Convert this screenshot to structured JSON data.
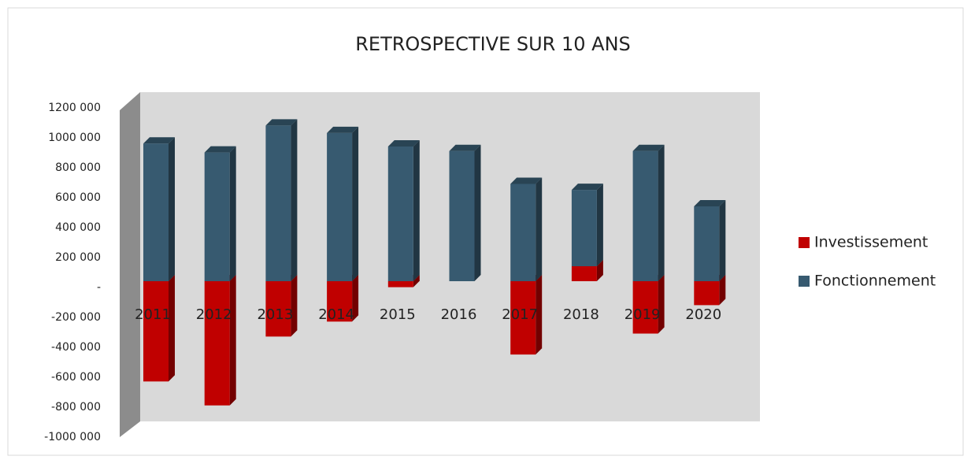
{
  "chart_data": {
    "type": "bar",
    "stacked": true,
    "title": "RETROSPECTIVE SUR 10 ANS",
    "categories": [
      "2011",
      "2012",
      "2013",
      "2014",
      "2015",
      "2016",
      "2017",
      "2018",
      "2019",
      "2020"
    ],
    "series": [
      {
        "name": "Investissement",
        "color": "#c00000",
        "values": [
          -670000,
          -830000,
          -370000,
          -270000,
          -40000,
          0,
          -490000,
          100000,
          -350000,
          -160000
        ]
      },
      {
        "name": "Fonctionnement",
        "color": "#375a70",
        "values": [
          920000,
          860000,
          1040000,
          990000,
          900000,
          870000,
          650000,
          510000,
          870000,
          500000
        ]
      }
    ],
    "ylim": [
      -1000000,
      1200000
    ],
    "yticks": [
      {
        "value": -1000000,
        "label": "-1000 000"
      },
      {
        "value": -800000,
        "label": "-800 000"
      },
      {
        "value": -600000,
        "label": "-600 000"
      },
      {
        "value": -400000,
        "label": "-400 000"
      },
      {
        "value": -200000,
        "label": "-200 000"
      },
      {
        "value": 0,
        "label": "-"
      },
      {
        "value": 200000,
        "label": "200 000"
      },
      {
        "value": 400000,
        "label": "400 000"
      },
      {
        "value": 600000,
        "label": "600 000"
      },
      {
        "value": 800000,
        "label": "800 000"
      },
      {
        "value": 1000000,
        "label": "1000 000"
      },
      {
        "value": 1200000,
        "label": "1200 000"
      }
    ],
    "legend": "right"
  }
}
